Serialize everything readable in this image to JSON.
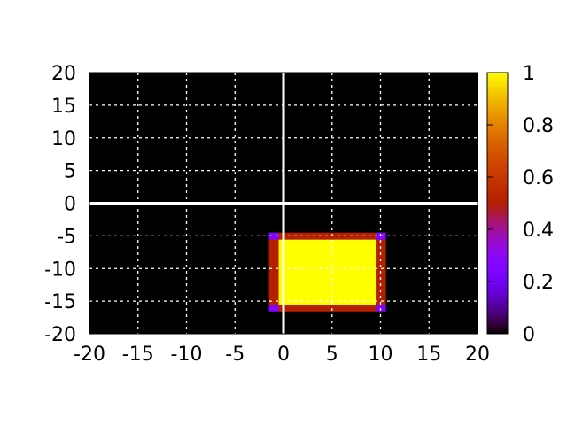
{
  "chart_data": {
    "type": "heatmap",
    "title": "",
    "xlabel": "",
    "ylabel": "",
    "xlim": [
      -20,
      20
    ],
    "ylim": [
      -20,
      20
    ],
    "xticks": [
      "-20",
      "-15",
      "-10",
      "-5",
      "0",
      "5",
      "10",
      "15",
      "20"
    ],
    "yticks": [
      "-20",
      "-15",
      "-10",
      "-5",
      "0",
      "5",
      "10",
      "15",
      "20"
    ],
    "grid": true,
    "zero_axes": true,
    "background_value": 0,
    "cell_size": 1,
    "rectangle_cells": {
      "x": [
        -1,
        10
      ],
      "y": [
        -16,
        -5
      ]
    },
    "rectangle_values": {
      "interior": 1,
      "edge": 0.5,
      "corner": 0.25
    },
    "colorbar": {
      "range": [
        0,
        1
      ],
      "ticks": [
        "0",
        "0.2",
        "0.4",
        "0.6",
        "0.8",
        "1"
      ],
      "palette": "gnuplot"
    },
    "colors": {
      "plot_background": "#000000",
      "grid": "#ffffff",
      "axes": "#ffffff"
    }
  }
}
